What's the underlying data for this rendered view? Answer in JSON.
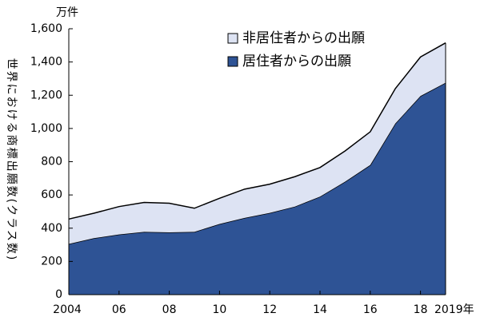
{
  "chart_data": {
    "type": "stacked-area",
    "unit_label": "万件",
    "y_label": "世界における商標出願数(クラス数)",
    "x": [
      2004,
      2005,
      2006,
      2007,
      2008,
      2009,
      2010,
      2011,
      2012,
      2013,
      2014,
      2015,
      2016,
      2017,
      2018,
      2019
    ],
    "series": [
      {
        "name": "居住者からの出願",
        "color": "#2e5395",
        "values": [
          305,
          340,
          362,
          378,
          375,
          378,
          425,
          462,
          492,
          530,
          590,
          680,
          780,
          1030,
          1195,
          1275
        ]
      },
      {
        "name": "非居住者からの出願",
        "color": "#dde3f3",
        "values": [
          150,
          150,
          168,
          177,
          175,
          142,
          155,
          173,
          173,
          180,
          175,
          185,
          200,
          210,
          235,
          240
        ]
      }
    ],
    "xlim": [
      2004,
      2019
    ],
    "xticks": [
      2004,
      {
        "value": 2006,
        "label": "06"
      },
      {
        "value": 2008,
        "label": "08"
      },
      {
        "value": 2010,
        "label": "10"
      },
      {
        "value": 2012,
        "label": "12"
      },
      {
        "value": 2014,
        "label": "14"
      },
      {
        "value": 2016,
        "label": "16"
      },
      {
        "value": 2018,
        "label": "18"
      },
      {
        "value": 2019,
        "label": "2019年"
      }
    ],
    "ylim": [
      0,
      1600
    ],
    "yticks": [
      0,
      200,
      400,
      600,
      800,
      {
        "value": 1000,
        "label": "1,000"
      },
      {
        "value": 1200,
        "label": "1,200"
      },
      {
        "value": 1400,
        "label": "1,400"
      },
      {
        "value": 1600,
        "label": "1,600"
      }
    ],
    "legend": "upper-right"
  }
}
